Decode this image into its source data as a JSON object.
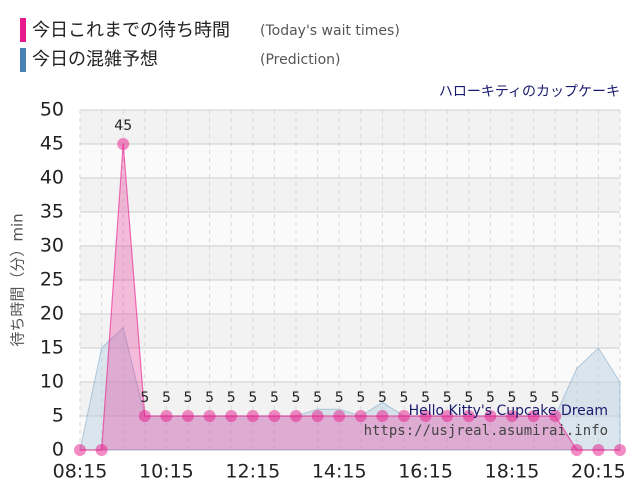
{
  "chart_data": {
    "type": "line",
    "subtitle": "ハローキティのカップケーキ",
    "y_label": "待ち時間（分）min",
    "watermark": [
      "Hello Kitty's Cupcake Dream",
      "https://usjreal.asumirai.info"
    ],
    "categories": [
      "08:15",
      null,
      null,
      null,
      "10:15",
      null,
      null,
      null,
      "12:15",
      null,
      null,
      null,
      "14:15",
      null,
      null,
      null,
      "16:15",
      null,
      null,
      null,
      "18:15",
      null,
      null,
      null,
      "20:15",
      null
    ],
    "series": [
      {
        "name": "今日これまでの待ち時間",
        "name_en": "(Today's wait times)",
        "color": "#e8198b",
        "values": [
          0,
          0,
          45,
          5,
          5,
          5,
          5,
          5,
          5,
          5,
          5,
          5,
          5,
          5,
          5,
          5,
          5,
          5,
          5,
          5,
          5,
          5,
          5,
          0,
          0,
          0
        ]
      },
      {
        "name": "今日の混雑予想",
        "name_en": "(Prediction)",
        "color": "#4682b4",
        "values": [
          0,
          15,
          18,
          5,
          5,
          5,
          5,
          5,
          5,
          5,
          5,
          6,
          6,
          5,
          7,
          5,
          5,
          5,
          5,
          5,
          5,
          5,
          5,
          12,
          15,
          10
        ]
      }
    ],
    "ylim": [
      0,
      50
    ],
    "yticks": [
      0,
      5,
      10,
      15,
      20,
      25,
      30,
      35,
      40,
      45,
      50
    ],
    "grid": true
  }
}
